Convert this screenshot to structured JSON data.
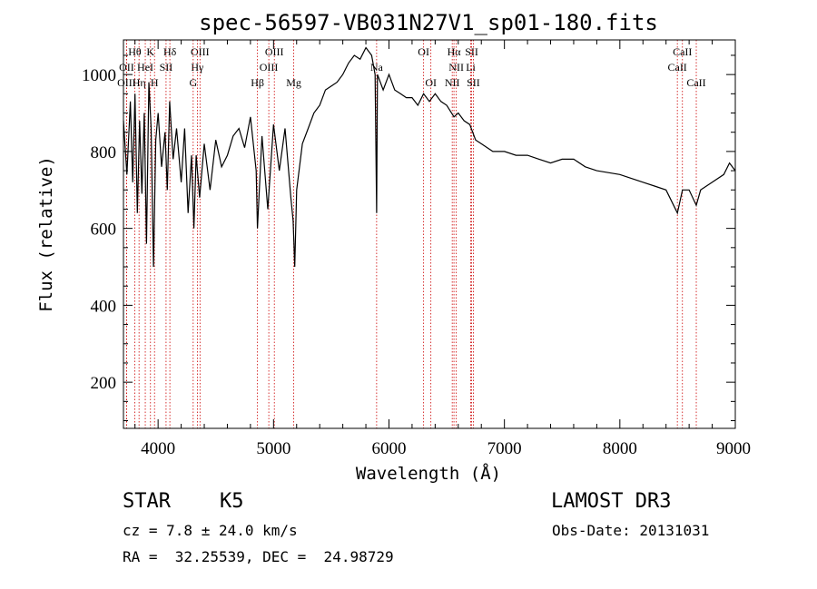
{
  "chart_data": {
    "type": "line",
    "title": "spec-56597-VB031N27V1_sp01-180.fits",
    "xlabel": "Wavelength (Å)",
    "ylabel": "Flux (relative)",
    "xlim": [
      3700,
      9000
    ],
    "ylim": [
      80,
      1090
    ],
    "xticks": [
      4000,
      5000,
      6000,
      7000,
      8000,
      9000
    ],
    "yticks": [
      200,
      400,
      600,
      800,
      1000
    ],
    "grid": false,
    "line_color": "#000000",
    "marker_color": "#cc0000",
    "series": [
      {
        "x": [
          3700,
          3730,
          3760,
          3780,
          3800,
          3820,
          3840,
          3860,
          3880,
          3900,
          3920,
          3940,
          3960,
          3980,
          4000,
          4030,
          4060,
          4080,
          4100,
          4130,
          4160,
          4200,
          4230,
          4260,
          4290,
          4310,
          4330,
          4360,
          4400,
          4450,
          4500,
          4550,
          4600,
          4650,
          4700,
          4750,
          4800,
          4850,
          4861,
          4900,
          4950,
          5000,
          5050,
          5100,
          5150,
          5170,
          5184,
          5200,
          5250,
          5300,
          5350,
          5400,
          5450,
          5500,
          5550,
          5600,
          5650,
          5700,
          5750,
          5800,
          5850,
          5880,
          5893,
          5900,
          5950,
          6000,
          6050,
          6100,
          6150,
          6200,
          6250,
          6300,
          6350,
          6400,
          6450,
          6500,
          6563,
          6600,
          6650,
          6700,
          6750,
          6800,
          6900,
          7000,
          7100,
          7200,
          7300,
          7400,
          7500,
          7600,
          7700,
          7800,
          7900,
          8000,
          8100,
          8200,
          8300,
          8400,
          8498,
          8542,
          8600,
          8662,
          8700,
          8800,
          8900,
          8950,
          9000
        ],
        "values": [
          880,
          740,
          930,
          720,
          950,
          640,
          880,
          690,
          900,
          560,
          980,
          860,
          500,
          830,
          900,
          760,
          850,
          700,
          930,
          780,
          860,
          720,
          860,
          640,
          790,
          600,
          790,
          680,
          820,
          700,
          830,
          760,
          790,
          840,
          860,
          810,
          890,
          750,
          600,
          840,
          650,
          870,
          750,
          860,
          680,
          620,
          500,
          700,
          820,
          860,
          900,
          920,
          960,
          970,
          980,
          1000,
          1030,
          1050,
          1040,
          1070,
          1050,
          1000,
          640,
          1000,
          960,
          1000,
          960,
          950,
          940,
          940,
          920,
          950,
          930,
          950,
          930,
          920,
          890,
          900,
          880,
          870,
          830,
          820,
          800,
          800,
          790,
          790,
          780,
          770,
          780,
          780,
          760,
          750,
          745,
          740,
          730,
          720,
          710,
          700,
          640,
          700,
          700,
          660,
          700,
          720,
          740,
          770,
          750
        ]
      }
    ],
    "line_markers": [
      {
        "label": "Hθ",
        "x": 3798,
        "row": 1
      },
      {
        "label": "OII",
        "x": 3727,
        "row": 2
      },
      {
        "label": "OIII",
        "x": 3727,
        "row": 3
      },
      {
        "label": "Hη",
        "x": 3835,
        "row": 3
      },
      {
        "label": "HeI",
        "x": 3889,
        "row": 2
      },
      {
        "label": "K",
        "x": 3934,
        "row": 1
      },
      {
        "label": "SII",
        "x": 4069,
        "row": 2
      },
      {
        "label": "H",
        "x": 3969,
        "row": 3
      },
      {
        "label": "Hδ",
        "x": 4102,
        "row": 1
      },
      {
        "label": "OIII",
        "x": 4363,
        "row": 1
      },
      {
        "label": "Hγ",
        "x": 4340,
        "row": 2
      },
      {
        "label": "G",
        "x": 4304,
        "row": 3
      },
      {
        "label": "Hβ",
        "x": 4861,
        "row": 3
      },
      {
        "label": "OIII",
        "x": 5007,
        "row": 1
      },
      {
        "label": "OIII",
        "x": 4959,
        "row": 2
      },
      {
        "label": "Mg",
        "x": 5175,
        "row": 3
      },
      {
        "label": "Na",
        "x": 5893,
        "row": 2
      },
      {
        "label": "OI",
        "x": 6300,
        "row": 1
      },
      {
        "label": "OI",
        "x": 6363,
        "row": 3
      },
      {
        "label": "Hα",
        "x": 6563,
        "row": 1
      },
      {
        "label": "SII",
        "x": 6716,
        "row": 1
      },
      {
        "label": "NII",
        "x": 6583,
        "row": 2
      },
      {
        "label": "Li",
        "x": 6708,
        "row": 2
      },
      {
        "label": "NII",
        "x": 6548,
        "row": 3
      },
      {
        "label": "SII",
        "x": 6731,
        "row": 3
      },
      {
        "label": "CaII",
        "x": 8542,
        "row": 1
      },
      {
        "label": "CaII",
        "x": 8498,
        "row": 2
      },
      {
        "label": "CaII",
        "x": 8662,
        "row": 3
      }
    ]
  },
  "info": {
    "class_label": "STAR",
    "subclass_label": "K5",
    "survey": "LAMOST DR3",
    "redshift": "cz = 7.8 ± 24.0 km/s",
    "obs_date": "Obs-Date: 20131031",
    "coords": "RA =  32.25539, DEC =  24.98729"
  }
}
